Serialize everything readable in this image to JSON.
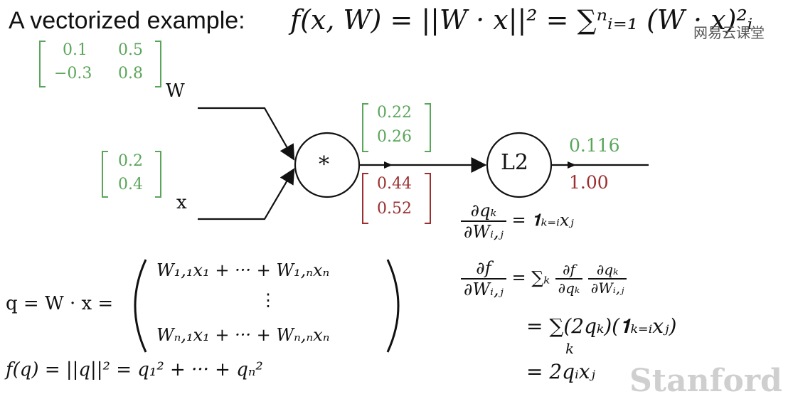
{
  "title": {
    "prefix": "A vectorized example:",
    "formula": "f(x, W) = ||W · x||² = ∑ⁿᵢ₌₁ (W · x)²ᵢ"
  },
  "watermark": "网易云课堂",
  "graph": {
    "w_label": "W",
    "x_label": "x",
    "mul_node": "*",
    "l2_node": "L2",
    "w_matrix": [
      [
        "0.1",
        "0.5"
      ],
      [
        "−0.3",
        "0.8"
      ]
    ],
    "x_vector": [
      "0.2",
      "0.4"
    ],
    "q_forward": [
      "0.22",
      "0.26"
    ],
    "q_grad": [
      "0.44",
      "0.52"
    ],
    "output_value": "0.116",
    "output_grad": "1.00"
  },
  "equations": {
    "q_lhs": "q = W · x =",
    "q_row1": "W₁,₁x₁ + ··· + W₁,ₙxₙ",
    "q_vdots": "⋮",
    "q_row2": "Wₙ,₁x₁ + ··· + Wₙ,ₙxₙ",
    "f_of_q": "f(q) = ||q||² = q₁² + ··· + qₙ²",
    "dq_num": "∂qₖ",
    "dq_den": "∂Wᵢ,ⱼ",
    "dq_rhs": "= 𝟏ₖ₌ᵢxⱼ",
    "df_num": "∂f",
    "df_den": "∂Wᵢ,ⱼ",
    "df_rhs_sum": "= ∑ₖ",
    "df_rhs_f_num": "∂f",
    "df_rhs_f_den": "∂qₖ",
    "df_rhs_q_num": "∂qₖ",
    "df_rhs_q_den": "∂Wᵢ,ⱼ",
    "step2": "= ∑(2qₖ)(𝟏ₖ₌ᵢxⱼ)",
    "step2_sub": "k",
    "step3": "= 2qᵢxⱼ"
  },
  "footer_logo": "Stanford"
}
